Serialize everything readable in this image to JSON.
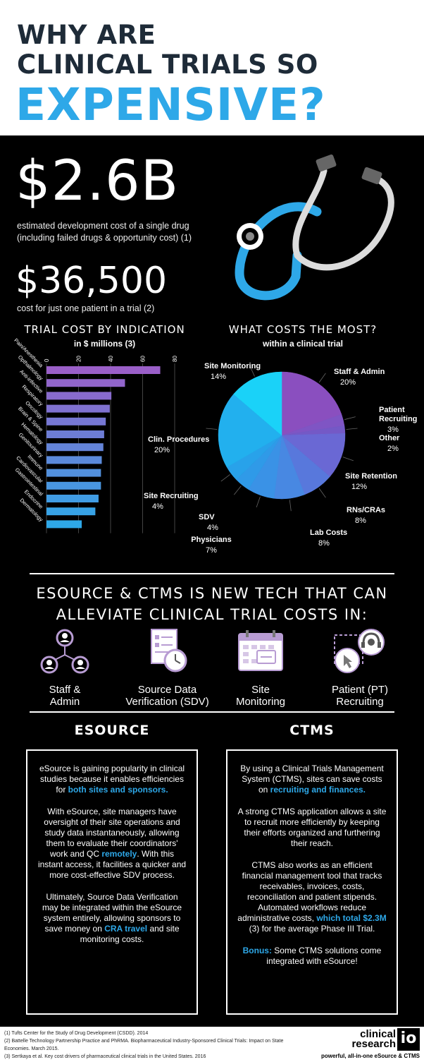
{
  "header": {
    "line1": "WHY ARE",
    "line2": "CLINICAL TRIALS SO",
    "line3": "EXPENSIVE?"
  },
  "stats": {
    "big1": "$2.6B",
    "big1_desc1": "estimated development cost of a single drug",
    "big1_desc2": "(including failed drugs & opportunity cost) (1)",
    "big2": "$36,500",
    "big2_desc": "cost for just one patient in a trial (2)"
  },
  "colors": {
    "accent_blue": "#2ea8e8",
    "dark_navy": "#1e2b38",
    "purple": "#9a5fc8",
    "icon_purple": "#b89cd3"
  },
  "bar_section": {
    "title": "TRIAL COST BY INDICATION",
    "subtitle": "in $ millions (3)"
  },
  "pie_section": {
    "title": "WHAT COSTS THE MOST?",
    "subtitle": "within a clinical trial"
  },
  "chart_data": [
    {
      "type": "bar",
      "orientation": "horizontal",
      "title": "TRIAL COST BY INDICATION",
      "subtitle": "in $ millions (3)",
      "xlim": [
        0,
        80
      ],
      "ticks": [
        "0",
        "20",
        "40",
        "60",
        "80"
      ],
      "categories": [
        "Pain/Anesthesia",
        "Opthalmology",
        "Anti-infective",
        "Respiratory",
        "Oncology",
        "Brain & Spine",
        "Hematology",
        "Genitourinary",
        "Immune",
        "Cardiovascular",
        "Gastrointestinal",
        "Endocrine",
        "Dermatology"
      ],
      "values": [
        71,
        49,
        40.5,
        39.5,
        37,
        36,
        35.5,
        34.5,
        34,
        34,
        32.5,
        30.5,
        22
      ]
    },
    {
      "type": "pie",
      "title": "WHAT COSTS THE MOST?",
      "subtitle": "within a clinical trial",
      "slices": [
        {
          "label": "Staff & Admin",
          "value": 20,
          "text": "20%",
          "color": "#8a4fbf"
        },
        {
          "label": "Patient Recruiting",
          "value": 3,
          "text": "3%",
          "color": "#7f55c4"
        },
        {
          "label": "Other",
          "value": 2,
          "text": "2%",
          "color": "#7459c6"
        },
        {
          "label": "Site Retention",
          "value": 12,
          "text": "12%",
          "color": "#6a68d4"
        },
        {
          "label": "RNs/CRAs",
          "value": 8,
          "text": "8%",
          "color": "#5878dc"
        },
        {
          "label": "Lab Costs",
          "value": 8,
          "text": "8%",
          "color": "#4888e2"
        },
        {
          "label": "Physicians",
          "value": 7,
          "text": "7%",
          "color": "#3a92e6"
        },
        {
          "label": "SDV",
          "value": 4,
          "text": "4%",
          "color": "#2f9ae8"
        },
        {
          "label": "Site Recruiting",
          "value": 4,
          "text": "4%",
          "color": "#28a2ea"
        },
        {
          "label": "Clin. Procedures",
          "value": 20,
          "text": "20%",
          "color": "#22b0ee"
        },
        {
          "label": "Site Monitoring",
          "value": 14,
          "text": "14%",
          "color": "#1ad2f8"
        }
      ]
    }
  ],
  "alleviate": {
    "line1": "ESOURCE & CTMS IS NEW TECH THAT CAN",
    "line2": "ALLEVIATE CLINICAL TRIAL COSTS IN:"
  },
  "icons": [
    {
      "icon": "people-network-icon",
      "line1": "Staff &",
      "line2": "Admin"
    },
    {
      "icon": "document-clock-icon",
      "line1": "Source Data",
      "line2": "Verification (SDV)"
    },
    {
      "icon": "calendar-icon",
      "line1": "Site",
      "line2": "Monitoring"
    },
    {
      "icon": "headset-cursor-icon",
      "line1": "Patient (PT)",
      "line2": "Recruiting"
    }
  ],
  "esource": {
    "heading": "ESOURCE",
    "p1a": "eSource is gaining popularity in clinical studies because it enables efficiencies for ",
    "p1b": "both sites and sponsors.",
    "p2a": "With eSource, site managers have oversight of their site operations and study data instantaneously, allowing them to evaluate their coordinators' work and QC ",
    "p2b": "remotely",
    "p2c": ".  With this instant access, it facilities a quicker and more cost-effective SDV process.",
    "p3a": "Ultimately, Source Data Verification may be integrated within the eSource system entirely, allowing sponsors to save money on ",
    "p3b": "CRA travel",
    "p3c": " and site monitoring costs."
  },
  "ctms": {
    "heading": "CTMS",
    "p1a": "By using a Clinical Trials Management System (CTMS), sites can save costs on ",
    "p1b": "recruiting and finances.",
    "p2": "A strong CTMS application allows a site to recruit more efficiently by keeping their efforts organized and furthering their reach.",
    "p3a": "CTMS also works as an efficient financial management tool that tracks receivables, invoices, costs, reconciliation and patient stipends.  Automated workflows reduce administrative costs, ",
    "p3b": "which total $2.3M",
    "p3c": " (3) for the average Phase III Trial.",
    "p4a": "Bonus:",
    "p4b": " Some CTMS solutions come integrated with eSource!"
  },
  "footer": {
    "ref1": "(1) Tufts Center for the Study of Drug Development (CSDD). 2014",
    "ref2": "(2) Battelle Technology Partnership Practice and PhRMA. Biopharmaceutical Industry-Sponsored Clinical Trials: Impact on State Economies. March 2015.",
    "ref3": "(3) Sertkaya et al. Key cost drivers of pharmaceutical clinical trials in the United States. 2016",
    "logo_line1": "clinical",
    "logo_line2": "research",
    "logo_mark": "io",
    "tagline": "powerful, all-in-one eSource & CTMS"
  }
}
